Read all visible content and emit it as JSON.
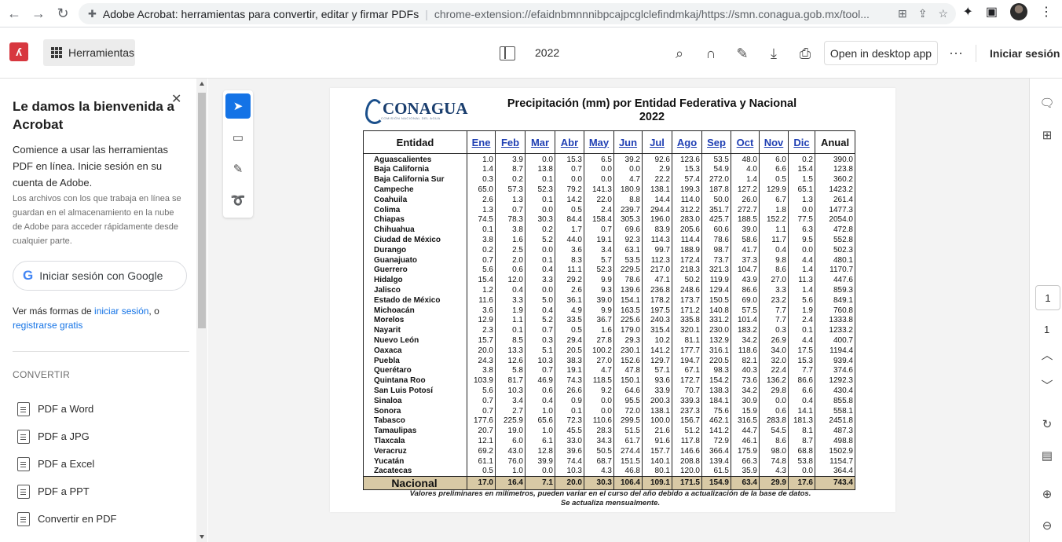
{
  "browser": {
    "tab_title": "Adobe Acrobat: herramientas para convertir, editar y firmar PDFs",
    "url": "chrome-extension://efaidnbmnnnibpcajpcglclefindmkaj/https://smn.conagua.gob.mx/tool..."
  },
  "toolbar": {
    "tools_label": "Herramientas",
    "doc_title": "2022",
    "open_desktop_label": "Open in desktop app",
    "sign_in_label": "Iniciar sesión"
  },
  "left_panel": {
    "heading": "Le damos la bienvenida a Acrobat",
    "intro": "Comience a usar las herramientas PDF en línea. Inicie sesión en su cuenta de Adobe.",
    "note": "Los archivos con los que trabaja en línea se guardan en el almacenamiento en la nube de Adobe para acceder rápidamente desde cualquier parte.",
    "google_button": "Iniciar sesión con Google",
    "more_prefix": "Ver más formas de ",
    "more_link1": "iniciar sesión",
    "more_mid": ", o",
    "more_link2": "registrarse gratis",
    "section_label": "CONVERTIR",
    "convert_items": [
      "PDF a Word",
      "PDF a JPG",
      "PDF a Excel",
      "PDF a PPT",
      "Convertir en PDF"
    ]
  },
  "pdf": {
    "logo_text": "CONAGUA",
    "logo_sub": "COMISIÓN NACIONAL DEL AGUA",
    "title_line1": "Precipitación (mm) por Entidad Federativa y Nacional",
    "title_line2": "2022",
    "header_entity": "Entidad",
    "months": [
      "Ene",
      "Feb",
      "Mar",
      "Abr",
      "May",
      "Jun",
      "Jul",
      "Ago",
      "Sep",
      "Oct",
      "Nov",
      "Dic"
    ],
    "header_annual": "Anual",
    "rows": [
      [
        "Aguascalientes",
        "1.0",
        "3.9",
        "0.0",
        "15.3",
        "6.5",
        "39.2",
        "92.6",
        "123.6",
        "53.5",
        "48.0",
        "6.0",
        "0.2",
        "390.0"
      ],
      [
        "Baja California",
        "1.4",
        "8.7",
        "13.8",
        "0.7",
        "0.0",
        "0.0",
        "2.9",
        "15.3",
        "54.9",
        "4.0",
        "6.6",
        "15.4",
        "123.8"
      ],
      [
        "Baja California Sur",
        "0.3",
        "0.2",
        "0.1",
        "0.0",
        "0.0",
        "4.7",
        "22.2",
        "57.4",
        "272.0",
        "1.4",
        "0.5",
        "1.5",
        "360.2"
      ],
      [
        "Campeche",
        "65.0",
        "57.3",
        "52.3",
        "79.2",
        "141.3",
        "180.9",
        "138.1",
        "199.3",
        "187.8",
        "127.2",
        "129.9",
        "65.1",
        "1423.2"
      ],
      [
        "Coahuila",
        "2.6",
        "1.3",
        "0.1",
        "14.2",
        "22.0",
        "8.8",
        "14.4",
        "114.0",
        "50.0",
        "26.0",
        "6.7",
        "1.3",
        "261.4"
      ],
      [
        "Colima",
        "1.3",
        "0.7",
        "0.0",
        "0.5",
        "2.4",
        "239.7",
        "294.4",
        "312.2",
        "351.7",
        "272.7",
        "1.8",
        "0.0",
        "1477.3"
      ],
      [
        "Chiapas",
        "74.5",
        "78.3",
        "30.3",
        "84.4",
        "158.4",
        "305.3",
        "196.0",
        "283.0",
        "425.7",
        "188.5",
        "152.2",
        "77.5",
        "2054.0"
      ],
      [
        "Chihuahua",
        "0.1",
        "3.8",
        "0.2",
        "1.7",
        "0.7",
        "69.6",
        "83.9",
        "205.6",
        "60.6",
        "39.0",
        "1.1",
        "6.3",
        "472.8"
      ],
      [
        "Ciudad de México",
        "3.8",
        "1.6",
        "5.2",
        "44.0",
        "19.1",
        "92.3",
        "114.3",
        "114.4",
        "78.6",
        "58.6",
        "11.7",
        "9.5",
        "552.8"
      ],
      [
        "Durango",
        "0.2",
        "2.5",
        "0.0",
        "3.6",
        "3.4",
        "63.1",
        "99.7",
        "188.9",
        "98.7",
        "41.7",
        "0.4",
        "0.0",
        "502.3"
      ],
      [
        "Guanajuato",
        "0.7",
        "2.0",
        "0.1",
        "8.3",
        "5.7",
        "53.5",
        "112.3",
        "172.4",
        "73.7",
        "37.3",
        "9.8",
        "4.4",
        "480.1"
      ],
      [
        "Guerrero",
        "5.6",
        "0.6",
        "0.4",
        "11.1",
        "52.3",
        "229.5",
        "217.0",
        "218.3",
        "321.3",
        "104.7",
        "8.6",
        "1.4",
        "1170.7"
      ],
      [
        "Hidalgo",
        "15.4",
        "12.0",
        "3.3",
        "29.2",
        "9.9",
        "78.6",
        "47.1",
        "50.2",
        "119.9",
        "43.9",
        "27.0",
        "11.3",
        "447.6"
      ],
      [
        "Jalisco",
        "1.2",
        "0.4",
        "0.0",
        "2.6",
        "9.3",
        "139.6",
        "236.8",
        "248.6",
        "129.4",
        "86.6",
        "3.3",
        "1.4",
        "859.3"
      ],
      [
        "Estado de México",
        "11.6",
        "3.3",
        "5.0",
        "36.1",
        "39.0",
        "154.1",
        "178.2",
        "173.7",
        "150.5",
        "69.0",
        "23.2",
        "5.6",
        "849.1"
      ],
      [
        "Michoacán",
        "3.6",
        "1.9",
        "0.4",
        "4.9",
        "9.9",
        "163.5",
        "197.5",
        "171.2",
        "140.8",
        "57.5",
        "7.7",
        "1.9",
        "760.8"
      ],
      [
        "Morelos",
        "12.9",
        "1.1",
        "5.2",
        "33.5",
        "36.7",
        "225.6",
        "240.3",
        "335.8",
        "331.2",
        "101.4",
        "7.7",
        "2.4",
        "1333.8"
      ],
      [
        "Nayarit",
        "2.3",
        "0.1",
        "0.7",
        "0.5",
        "1.6",
        "179.0",
        "315.4",
        "320.1",
        "230.0",
        "183.2",
        "0.3",
        "0.1",
        "1233.2"
      ],
      [
        "Nuevo León",
        "15.7",
        "8.5",
        "0.3",
        "29.4",
        "27.8",
        "29.3",
        "10.2",
        "81.1",
        "132.9",
        "34.2",
        "26.9",
        "4.4",
        "400.7"
      ],
      [
        "Oaxaca",
        "20.0",
        "13.3",
        "5.1",
        "20.5",
        "100.2",
        "230.1",
        "141.2",
        "177.7",
        "316.1",
        "118.6",
        "34.0",
        "17.5",
        "1194.4"
      ],
      [
        "Puebla",
        "24.3",
        "12.6",
        "10.3",
        "38.3",
        "27.0",
        "152.6",
        "129.7",
        "194.7",
        "220.5",
        "82.1",
        "32.0",
        "15.3",
        "939.4"
      ],
      [
        "Querétaro",
        "3.8",
        "5.8",
        "0.7",
        "19.1",
        "4.7",
        "47.8",
        "57.1",
        "67.1",
        "98.3",
        "40.3",
        "22.4",
        "7.7",
        "374.6"
      ],
      [
        "Quintana Roo",
        "103.9",
        "81.7",
        "46.9",
        "74.3",
        "118.5",
        "150.1",
        "93.6",
        "172.7",
        "154.2",
        "73.6",
        "136.2",
        "86.6",
        "1292.3"
      ],
      [
        "San Luis Potosí",
        "5.6",
        "10.3",
        "0.6",
        "26.6",
        "9.2",
        "64.6",
        "33.9",
        "70.7",
        "138.3",
        "34.2",
        "29.8",
        "6.6",
        "430.4"
      ],
      [
        "Sinaloa",
        "0.7",
        "3.4",
        "0.4",
        "0.9",
        "0.0",
        "95.5",
        "200.3",
        "339.3",
        "184.1",
        "30.9",
        "0.0",
        "0.4",
        "855.8"
      ],
      [
        "Sonora",
        "0.7",
        "2.7",
        "1.0",
        "0.1",
        "0.0",
        "72.0",
        "138.1",
        "237.3",
        "75.6",
        "15.9",
        "0.6",
        "14.1",
        "558.1"
      ],
      [
        "Tabasco",
        "177.6",
        "225.9",
        "65.6",
        "72.3",
        "110.6",
        "299.5",
        "100.0",
        "156.7",
        "462.1",
        "316.5",
        "283.8",
        "181.3",
        "2451.8"
      ],
      [
        "Tamaulipas",
        "20.7",
        "19.0",
        "1.0",
        "45.5",
        "28.3",
        "51.5",
        "21.6",
        "51.2",
        "141.2",
        "44.7",
        "54.5",
        "8.1",
        "487.3"
      ],
      [
        "Tlaxcala",
        "12.1",
        "6.0",
        "6.1",
        "33.0",
        "34.3",
        "61.7",
        "91.6",
        "117.8",
        "72.9",
        "46.1",
        "8.6",
        "8.7",
        "498.8"
      ],
      [
        "Veracruz",
        "69.2",
        "43.0",
        "12.8",
        "39.6",
        "50.5",
        "274.4",
        "157.7",
        "146.6",
        "366.4",
        "175.9",
        "98.0",
        "68.8",
        "1502.9"
      ],
      [
        "Yucatán",
        "61.1",
        "76.0",
        "39.9",
        "74.4",
        "68.7",
        "151.5",
        "140.1",
        "208.8",
        "139.4",
        "66.3",
        "74.8",
        "53.8",
        "1154.7"
      ],
      [
        "Zacatecas",
        "0.5",
        "1.0",
        "0.0",
        "10.3",
        "4.3",
        "46.8",
        "80.1",
        "120.0",
        "61.5",
        "35.9",
        "4.3",
        "0.0",
        "364.4"
      ]
    ],
    "national": [
      "Nacional",
      "17.0",
      "16.4",
      "7.1",
      "20.0",
      "30.3",
      "106.4",
      "109.1",
      "171.5",
      "154.9",
      "63.4",
      "29.9",
      "17.6",
      "743.4"
    ],
    "footnote_line1": "Valores  preliminares en milímetros, pueden variar en el curso del  año debido a actualización de la base de datos.",
    "footnote_line2": "Se actualiza mensualmente."
  },
  "pager": {
    "current": "1",
    "total": "1"
  },
  "colors": {
    "acrobat_red": "#d7373f",
    "accent_blue": "#1473e6",
    "national_row": "#d8c9a5",
    "month_link": "#1f3fb3"
  }
}
